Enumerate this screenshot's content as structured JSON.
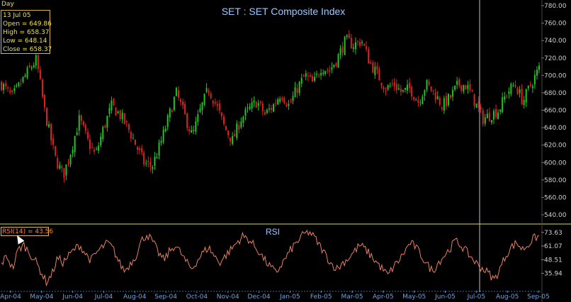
{
  "header": {
    "period_label": "Day",
    "title": "SET : SET Composite Index"
  },
  "info": {
    "date": "13 Jul 05",
    "open": "Open =  649.86",
    "high": "High =  658.37",
    "low": "Low =  648.14",
    "close": "Close = 658.37"
  },
  "rsi_panel": {
    "title": "RSI",
    "readout": "RSI(14) = 43.56"
  },
  "colors": {
    "up": "#22c522",
    "down": "#e02020",
    "rsi_line": "#e88060",
    "axis_text": "#d0d0d0",
    "separator": "#d8d86a",
    "crosshair": "#c0c0c0"
  },
  "chart_data": [
    {
      "type": "candlestick",
      "title": "SET : SET Composite Index",
      "ylim": [
        540,
        780
      ],
      "y_ticks": [
        "540.00",
        "560.00",
        "580.00",
        "600.00",
        "620.00",
        "640.00",
        "660.00",
        "680.00",
        "700.00",
        "720.00",
        "740.00",
        "760.00",
        "780.00"
      ],
      "x_tick_labels": [
        "Apr-04",
        "May-04",
        "Jun-04",
        "Jul-04",
        "Aug-04",
        "Sep-04",
        "Oct-04",
        "Nov-04",
        "Dec-04",
        "Jan-05",
        "Feb-05",
        "Mar-05",
        "Apr-05",
        "May-05",
        "Jun-05",
        "Jul-05",
        "Aug-05",
        "Sep-05"
      ],
      "close_path": [
        [
          0,
          690
        ],
        [
          0.02,
          675
        ],
        [
          0.035,
          690
        ],
        [
          0.05,
          705
        ],
        [
          0.065,
          718
        ],
        [
          0.08,
          660
        ],
        [
          0.1,
          605
        ],
        [
          0.115,
          585
        ],
        [
          0.13,
          615
        ],
        [
          0.145,
          650
        ],
        [
          0.16,
          625
        ],
        [
          0.175,
          608
        ],
        [
          0.19,
          640
        ],
        [
          0.205,
          665
        ],
        [
          0.22,
          655
        ],
        [
          0.235,
          640
        ],
        [
          0.25,
          620
        ],
        [
          0.265,
          600
        ],
        [
          0.28,
          595
        ],
        [
          0.295,
          620
        ],
        [
          0.31,
          650
        ],
        [
          0.325,
          680
        ],
        [
          0.34,
          655
        ],
        [
          0.355,
          630
        ],
        [
          0.37,
          660
        ],
        [
          0.385,
          685
        ],
        [
          0.4,
          665
        ],
        [
          0.415,
          640
        ],
        [
          0.43,
          625
        ],
        [
          0.445,
          650
        ],
        [
          0.46,
          660
        ],
        [
          0.475,
          670
        ],
        [
          0.49,
          655
        ],
        [
          0.505,
          665
        ],
        [
          0.52,
          680
        ],
        [
          0.535,
          665
        ],
        [
          0.55,
          685
        ],
        [
          0.565,
          700
        ],
        [
          0.58,
          690
        ],
        [
          0.595,
          710
        ],
        [
          0.61,
          705
        ],
        [
          0.625,
          720
        ],
        [
          0.64,
          740
        ],
        [
          0.655,
          735
        ],
        [
          0.67,
          740
        ],
        [
          0.685,
          715
        ],
        [
          0.7,
          700
        ],
        [
          0.715,
          685
        ],
        [
          0.73,
          690
        ],
        [
          0.745,
          680
        ],
        [
          0.76,
          685
        ],
        [
          0.775,
          670
        ],
        [
          0.79,
          690
        ],
        [
          0.805,
          680
        ],
        [
          0.82,
          665
        ],
        [
          0.835,
          675
        ],
        [
          0.85,
          690
        ],
        [
          0.865,
          688
        ],
        [
          0.88,
          670
        ],
        [
          0.895,
          650
        ],
        [
          0.91,
          655
        ],
        [
          0.925,
          660
        ],
        [
          0.94,
          680
        ],
        [
          0.955,
          690
        ],
        [
          0.97,
          670
        ],
        [
          0.985,
          690
        ],
        [
          1,
          708
        ]
      ],
      "crosshair_at": 0.885
    },
    {
      "type": "line",
      "title": "RSI",
      "series_label": "RSI(14) = 43.56",
      "ylim": [
        20,
        80
      ],
      "y_ticks": [
        "73.63",
        "61.07",
        "48.51",
        "35.94"
      ],
      "values": [
        45,
        52,
        40,
        58,
        62,
        55,
        48,
        38,
        28,
        35,
        50,
        46,
        52,
        58,
        62,
        54,
        48,
        55,
        60,
        64,
        58,
        46,
        38,
        45,
        52,
        66,
        72,
        65,
        55,
        48,
        56,
        62,
        55,
        46,
        40,
        48,
        55,
        60,
        52,
        46,
        52,
        58,
        64,
        70,
        68,
        62,
        56,
        48,
        42,
        36,
        44,
        52,
        60,
        66,
        72,
        74,
        68,
        60,
        52,
        44,
        40,
        46,
        50,
        56,
        62,
        58,
        52,
        46,
        40,
        34,
        42,
        48,
        56,
        64,
        60,
        52,
        44,
        38,
        46,
        52,
        58,
        66,
        62,
        56,
        50,
        44,
        40,
        36,
        30,
        40,
        52,
        60,
        64,
        58,
        62,
        68,
        70
      ]
    }
  ]
}
